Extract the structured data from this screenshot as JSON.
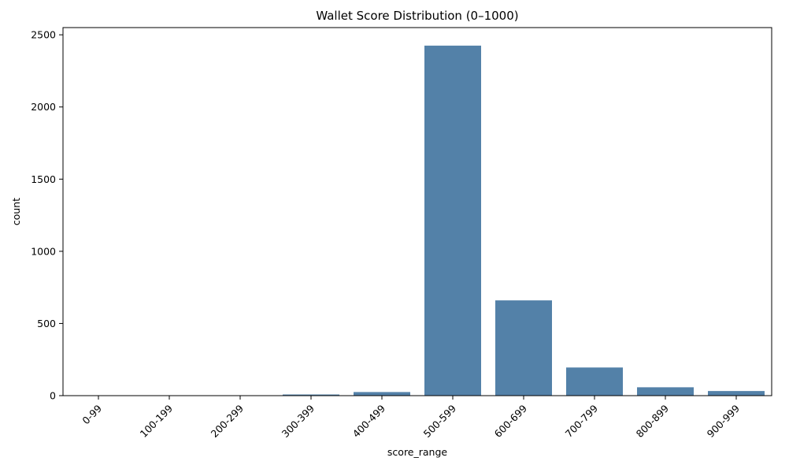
{
  "chart_data": {
    "type": "bar",
    "title": "Wallet Score Distribution (0–1000)",
    "xlabel": "score_range",
    "ylabel": "count",
    "categories": [
      "0-99",
      "100-199",
      "200-299",
      "300-399",
      "400-499",
      "500-599",
      "600-699",
      "700-799",
      "800-899",
      "900-999"
    ],
    "values": [
      0,
      0,
      0,
      8,
      25,
      2425,
      660,
      195,
      58,
      32
    ],
    "ylim": [
      0,
      2550
    ],
    "yticks": [
      0,
      500,
      1000,
      1500,
      2000,
      2500
    ],
    "grid": false,
    "bar_color": "#5381a8"
  }
}
